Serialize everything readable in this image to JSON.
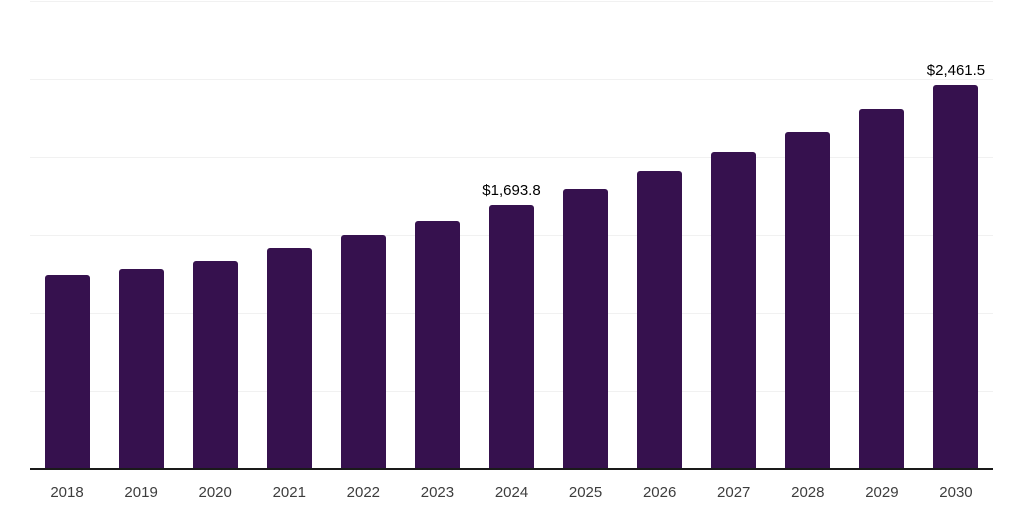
{
  "chart": {
    "background_color": "#ffffff",
    "bar_color": "#36114E",
    "axis_line_color": "#1a1a1a",
    "gridline_color": "#f1f1f1",
    "x_label_color": "#3d3d3d",
    "data_label_color": "#000000"
  },
  "chart_data": {
    "type": "bar",
    "categories": [
      "2018",
      "2019",
      "2020",
      "2021",
      "2022",
      "2023",
      "2024",
      "2025",
      "2026",
      "2027",
      "2028",
      "2029",
      "2030"
    ],
    "values": [
      1242,
      1284,
      1334,
      1417,
      1497,
      1593,
      1693.8,
      1794,
      1911,
      2034,
      2162,
      2307,
      2461.5
    ],
    "data_labels": [
      "",
      "",
      "",
      "",
      "",
      "",
      "$1,693.8",
      "",
      "",
      "",
      "",
      "",
      "$2,461.5"
    ],
    "title": "",
    "xlabel": "",
    "ylabel": "",
    "ylim": [
      0,
      3000
    ],
    "gridline_interval": 500,
    "grid": "horizontal",
    "legend": "none",
    "y_tick_labels_visible": false
  }
}
